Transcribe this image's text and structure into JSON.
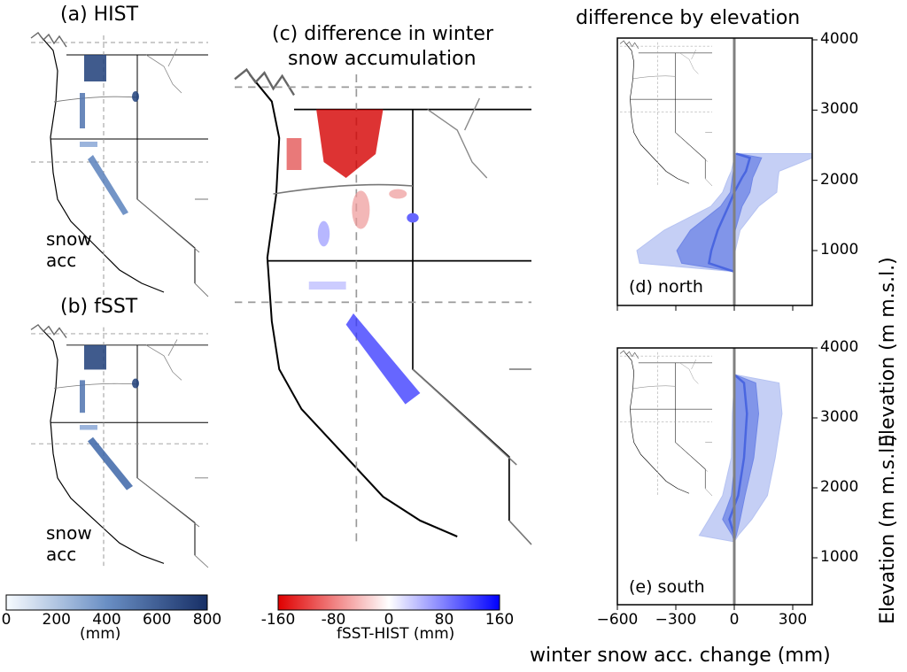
{
  "panels": {
    "a_title": "(a) HIST",
    "b_title": "(b) fSST",
    "c_title_line1": "(c) difference in winter",
    "c_title_line2": "snow accumulation",
    "right_title": "difference by elevation",
    "map_label_line1": "snow",
    "map_label_line2": "acc",
    "d_label": "(d) north",
    "e_label": "(e) south"
  },
  "colors": {
    "snow": "#1f3f7a",
    "positive": "#0000ff",
    "negative": "#d40000",
    "band_outer": "#b6c3f2",
    "band_inner": "#6f86e6",
    "mean_line": "#4a66e0",
    "zero_line": "#808080"
  },
  "chart_data": [
    {
      "type": "colorbar",
      "ticks": [
        "0",
        "200",
        "400",
        "600",
        "800"
      ],
      "label": "(mm)",
      "range": [
        0,
        800
      ],
      "colormap": "white-to-dark-blue"
    },
    {
      "type": "colorbar",
      "ticks": [
        "-160",
        "-80",
        "0",
        "80",
        "160"
      ],
      "label": "fSST-HIST (mm)",
      "range": [
        -160,
        160
      ],
      "colormap": "red-white-blue"
    },
    {
      "type": "area",
      "panel": "(d) north",
      "xlabel": "winter snow acc. change (mm)",
      "ylabel": "Elevation (m m.s.l.)",
      "xlim": [
        -600,
        400
      ],
      "ylim": [
        350,
        4000
      ],
      "xticks": [
        "−600",
        "−300",
        "0",
        "300"
      ],
      "yticks": [
        "1000",
        "2000",
        "3000",
        "4000"
      ],
      "elevation": [
        700,
        820,
        1000,
        1290,
        1630,
        1830,
        2040,
        2130,
        2320,
        2380
      ],
      "outer_low": [
        0,
        -486,
        -500,
        -360,
        -120,
        -60,
        -30,
        -15,
        0,
        0
      ],
      "outer_high": [
        0,
        0,
        5,
        30,
        125,
        218,
        225,
        230,
        400,
        400
      ],
      "inner_low": [
        0,
        -270,
        -295,
        -225,
        -70,
        -20,
        -10,
        -5,
        0,
        0
      ],
      "inner_high": [
        0,
        0,
        0,
        5,
        40,
        80,
        95,
        110,
        140,
        20
      ],
      "mean": [
        0,
        -130,
        -118,
        -85,
        -30,
        0,
        40,
        60,
        80,
        10
      ]
    },
    {
      "type": "area",
      "panel": "(e) south",
      "xlabel": "winter snow acc. change (mm)",
      "ylabel": "Elevation (m m.s.l.)",
      "xlim": [
        -600,
        400
      ],
      "ylim": [
        350,
        4000
      ],
      "xticks": [
        "−600",
        "−300",
        "0",
        "300"
      ],
      "yticks": [
        "1000",
        "2000",
        "3000",
        "4000"
      ],
      "elevation": [
        1230,
        1320,
        1550,
        1890,
        2430,
        3060,
        3500,
        3620
      ],
      "outer_low": [
        0,
        -180,
        -130,
        -60,
        -15,
        -10,
        0,
        0
      ],
      "outer_high": [
        0,
        20,
        90,
        170,
        210,
        245,
        230,
        0
      ],
      "inner_low": [
        0,
        -10,
        -60,
        -15,
        5,
        5,
        5,
        0
      ],
      "inner_high": [
        0,
        10,
        30,
        55,
        100,
        125,
        110,
        0
      ],
      "mean": [
        0,
        0,
        -25,
        20,
        50,
        65,
        50,
        0
      ]
    }
  ]
}
